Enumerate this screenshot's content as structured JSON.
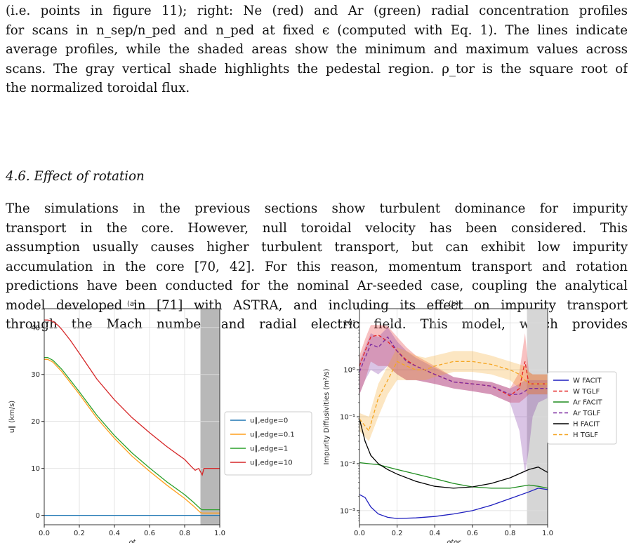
{
  "caption_lines": [
    "(i.e. points in figure 11); right: Ne (red) and Ar (green) radial concentration profiles",
    "for scans in n_sep/n_ped and n_ped at fixed ϵ (computed with Eq. 1). The lines indicate",
    "average profiles, while the shaded areas show the minimum and maximum values across",
    "scans. The gray vertical shade highlights the pedestal region. ρ_tor is the square root of",
    "the normalized toroidal flux."
  ],
  "section_title": "4.6. Effect of rotation",
  "body_lines": [
    "The simulations in the previous sections show turbulent dominance for impurity",
    "transport in the core. However, null toroidal velocity has been considered. This",
    "assumption usually causes higher turbulent transport, but can exhibit low impurity",
    "accumulation in the core [70, 42]. For this reason, momentum transport and rotation",
    "predictions have been conducted for the nominal Ar-seeded case, coupling the analytical",
    "model developed in [71] with ASTRA, and including its effect on impurity transport",
    "through the Mach number and radial electric field. This model, which provides"
  ],
  "chart_data": [
    {
      "type": "line",
      "title": "(a)",
      "xlabel": "ρt",
      "ylabel": "u∥ (km/s)",
      "xlim": [
        0.0,
        1.0
      ],
      "ylim": [
        -2,
        44
      ],
      "xticks": [
        "0.0",
        "0.2",
        "0.4",
        "0.6",
        "0.8",
        "1.0"
      ],
      "yticks": [
        "0",
        "10",
        "20",
        "30",
        "40"
      ],
      "grid": true,
      "shaded_region": [
        0.89,
        1.0
      ],
      "legend_position": "outside-right",
      "series": [
        {
          "name": "u∥,edge=0",
          "color": "#1f77b4",
          "x": [
            0.0,
            0.2,
            0.4,
            0.6,
            0.8,
            1.0
          ],
          "y": [
            0,
            0,
            0,
            0,
            0,
            0
          ]
        },
        {
          "name": "u∥,edge=0.1",
          "color": "#ff9f1c",
          "x": [
            0.0,
            0.02,
            0.05,
            0.1,
            0.15,
            0.2,
            0.3,
            0.4,
            0.5,
            0.6,
            0.7,
            0.8,
            0.85,
            0.89,
            0.9,
            1.0
          ],
          "y": [
            33.2,
            33.2,
            32.6,
            30.6,
            28.2,
            25.8,
            20.7,
            16.4,
            12.6,
            9.4,
            6.4,
            3.6,
            2.0,
            0.6,
            0.5,
            0.5
          ]
        },
        {
          "name": "u∥,edge=1",
          "color": "#2ca02c",
          "x": [
            0.0,
            0.02,
            0.05,
            0.1,
            0.15,
            0.2,
            0.3,
            0.4,
            0.5,
            0.6,
            0.7,
            0.8,
            0.85,
            0.89,
            0.9,
            1.0
          ],
          "y": [
            33.6,
            33.6,
            33.0,
            31.1,
            28.7,
            26.3,
            21.3,
            17.0,
            13.3,
            10.1,
            7.1,
            4.4,
            2.8,
            1.4,
            1.2,
            1.2
          ]
        },
        {
          "name": "u∥,edge=10",
          "color": "#d62728",
          "x": [
            0.0,
            0.02,
            0.05,
            0.08,
            0.1,
            0.15,
            0.2,
            0.3,
            0.4,
            0.5,
            0.6,
            0.7,
            0.8,
            0.84,
            0.86,
            0.88,
            0.9,
            0.91,
            1.0
          ],
          "y": [
            41.6,
            41.6,
            41.3,
            40.4,
            39.6,
            37.2,
            34.5,
            29.0,
            24.6,
            20.8,
            17.6,
            14.6,
            11.9,
            10.3,
            9.6,
            10.0,
            8.6,
            10.0,
            10.0
          ]
        }
      ]
    },
    {
      "type": "line",
      "title": "(b)",
      "xlabel": "ρtor",
      "ylabel": "Impurity Diffusivities (m²/s)",
      "xlim": [
        0.0,
        1.0
      ],
      "yscale": "log",
      "ylim": [
        0.0005,
        20
      ],
      "xticks": [
        "0.0",
        "0.2",
        "0.4",
        "0.6",
        "0.8",
        "1.0"
      ],
      "yticks": [
        "10⁻³",
        "10⁻²",
        "10⁻¹",
        "10⁰",
        "10¹"
      ],
      "grid": true,
      "shaded_region": [
        0.89,
        1.0
      ],
      "legend_position": "outside-right",
      "series": [
        {
          "name": "W FACIT",
          "color": "#1f1fbf",
          "dash": false,
          "x": [
            0.0,
            0.03,
            0.06,
            0.1,
            0.15,
            0.2,
            0.3,
            0.4,
            0.5,
            0.6,
            0.7,
            0.8,
            0.9,
            0.95,
            1.0
          ],
          "y": [
            0.0022,
            0.0019,
            0.0012,
            0.00085,
            0.00072,
            0.00068,
            0.0007,
            0.00075,
            0.00085,
            0.001,
            0.0013,
            0.0018,
            0.0025,
            0.003,
            0.0028
          ]
        },
        {
          "name": "W TGLF",
          "color": "#e52222",
          "dash": true,
          "x": [
            0.0,
            0.03,
            0.06,
            0.1,
            0.15,
            0.2,
            0.25,
            0.3,
            0.4,
            0.5,
            0.6,
            0.7,
            0.8,
            0.85,
            0.88,
            0.9,
            0.92,
            0.95,
            1.0
          ],
          "y": [
            1.2,
            2.5,
            5.0,
            5.5,
            4.0,
            2.5,
            1.6,
            1.2,
            0.8,
            0.55,
            0.5,
            0.45,
            0.28,
            0.4,
            1.5,
            0.5,
            0.5,
            0.5,
            0.5
          ],
          "band_low": [
            0.3,
            0.6,
            1.5,
            1.2,
            1.2,
            0.8,
            0.6,
            0.6,
            0.5,
            0.4,
            0.35,
            0.3,
            0.2,
            0.2,
            0.25,
            0.3,
            0.3,
            0.3,
            0.3
          ],
          "band_high": [
            2.0,
            4.5,
            9.0,
            9.0,
            8.5,
            5.0,
            3.0,
            2.0,
            1.2,
            0.7,
            0.6,
            0.55,
            0.4,
            0.9,
            6.0,
            0.9,
            0.8,
            0.8,
            0.8
          ]
        },
        {
          "name": "Ar FACIT",
          "color": "#1e8c1e",
          "dash": false,
          "x": [
            0.0,
            0.1,
            0.2,
            0.3,
            0.4,
            0.5,
            0.6,
            0.7,
            0.8,
            0.9,
            0.95,
            1.0
          ],
          "y": [
            0.0105,
            0.0095,
            0.0075,
            0.006,
            0.0048,
            0.0038,
            0.0032,
            0.003,
            0.003,
            0.0035,
            0.0033,
            0.003
          ]
        },
        {
          "name": "Ar TGLF",
          "color": "#7b2aa0",
          "dash": true,
          "x": [
            0.0,
            0.03,
            0.06,
            0.1,
            0.15,
            0.2,
            0.25,
            0.3,
            0.4,
            0.5,
            0.6,
            0.7,
            0.8,
            0.85,
            0.88,
            0.9,
            0.92,
            0.95,
            1.0
          ],
          "y": [
            0.9,
            1.8,
            3.5,
            3.0,
            5.0,
            2.5,
            1.5,
            1.2,
            0.8,
            0.55,
            0.5,
            0.45,
            0.3,
            0.3,
            0.35,
            0.4,
            0.4,
            0.4,
            0.4
          ],
          "band_low": [
            0.3,
            0.6,
            1.0,
            0.8,
            1.2,
            0.8,
            0.6,
            0.6,
            0.5,
            0.4,
            0.35,
            0.3,
            0.2,
            0.05,
            0.006,
            0.02,
            0.1,
            0.2,
            0.25
          ],
          "band_high": [
            1.5,
            3.0,
            6.0,
            5.0,
            8.0,
            4.0,
            2.5,
            1.8,
            1.1,
            0.7,
            0.6,
            0.55,
            0.4,
            0.5,
            0.6,
            0.6,
            0.6,
            0.6,
            0.6
          ]
        },
        {
          "name": "H FACIT",
          "color": "#000000",
          "dash": false,
          "x": [
            0.0,
            0.03,
            0.06,
            0.1,
            0.15,
            0.2,
            0.3,
            0.4,
            0.5,
            0.6,
            0.7,
            0.8,
            0.9,
            0.95,
            1.0
          ],
          "y": [
            0.09,
            0.03,
            0.015,
            0.01,
            0.0075,
            0.006,
            0.0042,
            0.0033,
            0.003,
            0.0032,
            0.0038,
            0.005,
            0.0075,
            0.0085,
            0.0065
          ]
        },
        {
          "name": "H TGLF",
          "color": "#f5a623",
          "dash": true,
          "x": [
            0.0,
            0.05,
            0.1,
            0.15,
            0.2,
            0.25,
            0.3,
            0.35,
            0.4,
            0.5,
            0.6,
            0.7,
            0.8,
            0.85,
            0.88,
            0.9,
            0.92,
            0.95,
            1.0
          ],
          "y": [
            0.09,
            0.05,
            0.25,
            0.6,
            1.5,
            1.2,
            1.0,
            1.0,
            1.2,
            1.5,
            1.5,
            1.3,
            1.0,
            0.8,
            0.6,
            0.5,
            0.5,
            0.5,
            0.5
          ],
          "band_low": [
            0.05,
            0.03,
            0.1,
            0.3,
            0.6,
            0.6,
            0.6,
            0.6,
            0.7,
            0.9,
            0.9,
            0.8,
            0.6,
            0.4,
            0.35,
            0.3,
            0.3,
            0.3,
            0.3
          ],
          "band_high": [
            0.12,
            0.1,
            0.5,
            1.2,
            3.0,
            2.5,
            2.0,
            1.8,
            2.0,
            2.5,
            2.5,
            2.0,
            1.5,
            1.3,
            1.2,
            0.9,
            0.8,
            0.8,
            0.8
          ]
        }
      ]
    }
  ]
}
